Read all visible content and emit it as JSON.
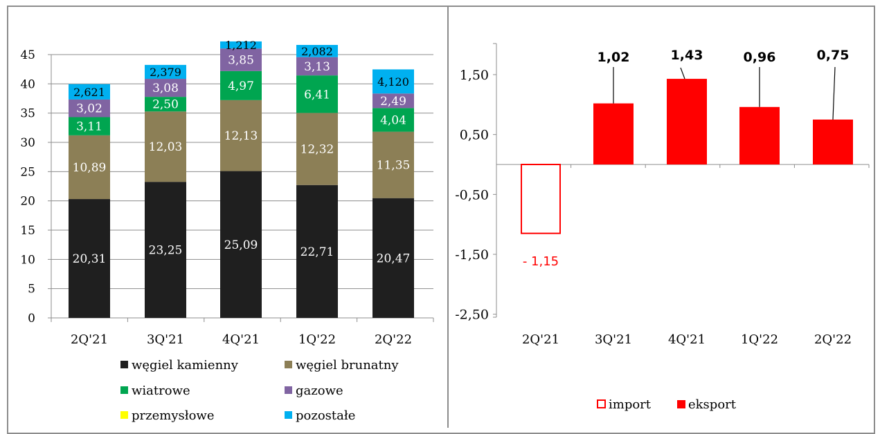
{
  "chart_data": [
    {
      "type": "bar",
      "stacked": true,
      "categories": [
        "2Q'21",
        "3Q'21",
        "4Q'21",
        "1Q'22",
        "2Q'22"
      ],
      "ylim": [
        0,
        45
      ],
      "yticks": [
        0,
        5,
        10,
        15,
        20,
        25,
        30,
        35,
        40,
        45
      ],
      "grid": true,
      "legend_position": "bottom",
      "series": [
        {
          "name": "węgiel kamienny",
          "color": "#1f1f1f",
          "values": [
            20.31,
            23.25,
            25.09,
            22.71,
            20.47
          ],
          "labels": [
            "20,31",
            "23,25",
            "25,09",
            "22,71",
            "20,47"
          ]
        },
        {
          "name": "węgiel brunatny",
          "color": "#8c7f56",
          "values": [
            10.89,
            12.03,
            12.13,
            12.32,
            11.35
          ],
          "labels": [
            "10,89",
            "12,03",
            "12,13",
            "12,32",
            "11,35"
          ]
        },
        {
          "name": "wiatrowe",
          "color": "#00a550",
          "values": [
            3.11,
            2.5,
            4.97,
            6.41,
            4.04
          ],
          "labels": [
            "3,11",
            "2,50",
            "4,97",
            "6,41",
            "4,04"
          ]
        },
        {
          "name": "gazowe",
          "color": "#8064a2",
          "values": [
            3.02,
            3.08,
            3.85,
            3.13,
            2.49
          ],
          "labels": [
            "3,02",
            "3,08",
            "3,85",
            "3,13",
            "2,49"
          ]
        },
        {
          "name": "przemysłowe",
          "color": "#ffff00",
          "values": [
            0,
            0,
            0,
            0,
            0
          ],
          "labels": [
            "",
            "",
            "",
            "",
            ""
          ]
        },
        {
          "name": "pozostałe",
          "color": "#00b0f0",
          "values": [
            2.621,
            2.379,
            1.212,
            2.082,
            4.12
          ],
          "labels": [
            "2,621",
            "2,379",
            "1,212",
            "2,082",
            "4,120"
          ]
        }
      ]
    },
    {
      "type": "bar",
      "categories": [
        "2Q'21",
        "3Q'21",
        "4Q'21",
        "1Q'22",
        "2Q'22"
      ],
      "ylim": [
        -2.5,
        2
      ],
      "yticks": [
        1.5,
        0.5,
        -0.5,
        -1.5,
        -2.5
      ],
      "ytick_labels": [
        "1,50",
        "0,50",
        "-0,50",
        "-1,50",
        "-2,50"
      ],
      "grid": false,
      "legend_position": "bottom",
      "values": [
        -1.15,
        1.02,
        1.43,
        0.96,
        0.75
      ],
      "labels": [
        "- 1,15",
        "1,02",
        "1,43",
        "0,96",
        "0,75"
      ],
      "series": [
        {
          "name": "import",
          "color": "#ff0000",
          "style": "outline"
        },
        {
          "name": "eksport",
          "color": "#ff0000",
          "style": "filled"
        }
      ]
    }
  ]
}
